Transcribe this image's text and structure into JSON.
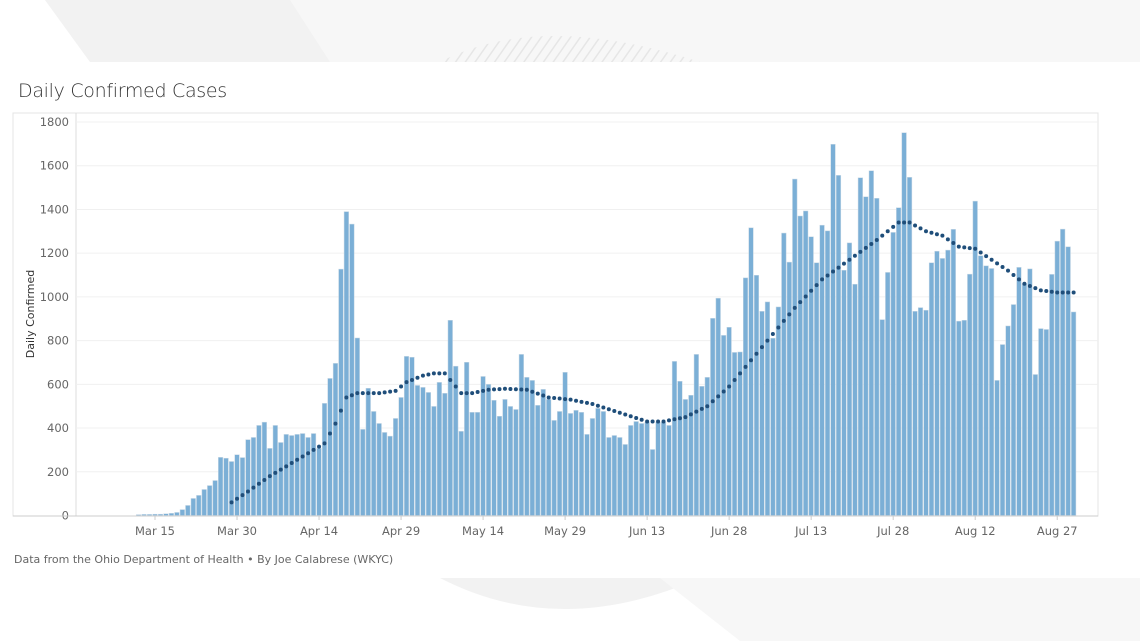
{
  "chart_data": {
    "type": "bar",
    "title": "Daily Confirmed Cases",
    "xlabel": "",
    "ylabel": "Daily Confirmed",
    "ylim": [
      0,
      1800
    ],
    "yticks": [
      0,
      200,
      400,
      600,
      800,
      1000,
      1200,
      1400,
      1600,
      1800
    ],
    "grid": true,
    "start_date": "2020-03-12",
    "xticks": [
      {
        "date": "2020-03-15",
        "label": "Mar 15"
      },
      {
        "date": "2020-03-30",
        "label": "Mar 30"
      },
      {
        "date": "2020-04-14",
        "label": "Apr 14"
      },
      {
        "date": "2020-04-29",
        "label": "Apr 29"
      },
      {
        "date": "2020-05-14",
        "label": "May 14"
      },
      {
        "date": "2020-05-29",
        "label": "May 29"
      },
      {
        "date": "2020-06-13",
        "label": "Jun 13"
      },
      {
        "date": "2020-06-28",
        "label": "Jun 28"
      },
      {
        "date": "2020-07-13",
        "label": "Jul 13"
      },
      {
        "date": "2020-07-28",
        "label": "Jul 28"
      },
      {
        "date": "2020-08-12",
        "label": "Aug 12"
      },
      {
        "date": "2020-08-27",
        "label": "Aug 27"
      }
    ],
    "series": [
      {
        "name": "Daily Confirmed",
        "type": "bar",
        "color": "#7bafd6",
        "values": [
          4,
          5,
          5,
          6,
          6,
          8,
          10,
          14,
          27,
          46,
          78,
          92,
          119,
          137,
          160,
          266,
          262,
          247,
          278,
          265,
          347,
          357,
          412,
          427,
          307,
          412,
          334,
          371,
          366,
          371,
          375,
          357,
          375,
          307,
          513,
          627,
          696,
          1127,
          1390,
          1333,
          812,
          394,
          582,
          476,
          421,
          380,
          363,
          444,
          540,
          728,
          724,
          595,
          586,
          563,
          499,
          609,
          559,
          893,
          683,
          385,
          701,
          472,
          472,
          636,
          600,
          527,
          454,
          531,
          499,
          485,
          737,
          632,
          618,
          504,
          577,
          531,
          435,
          476,
          655,
          467,
          481,
          472,
          371,
          444,
          490,
          476,
          357,
          366,
          357,
          325,
          412,
          430,
          421,
          426,
          302,
          426,
          426,
          412,
          705,
          614,
          531,
          550,
          737,
          591,
          632,
          902,
          994,
          824,
          861,
          746,
          748,
          1087,
          1316,
          1099,
          934,
          977,
          811,
          954,
          1292,
          1159,
          1539,
          1370,
          1393,
          1275,
          1156,
          1328,
          1302,
          1698,
          1556,
          1122,
          1247,
          1058,
          1545,
          1458,
          1577,
          1451,
          896,
          1112,
          1295,
          1408,
          1751,
          1547,
          934,
          951,
          939,
          1156,
          1209,
          1176,
          1214,
          1309,
          889,
          893,
          1104,
          1438,
          1188,
          1142,
          1130,
          618,
          782,
          867,
          965,
          1135,
          1061,
          1128,
          645,
          855,
          851,
          1103,
          1255,
          1310,
          1229,
          931
        ]
      },
      {
        "name": "Trend",
        "type": "dotted-line",
        "color": "#1f4e7a",
        "points": [
          [
            "2020-03-29",
            60
          ],
          [
            "2020-04-01",
            110
          ],
          [
            "2020-04-05",
            180
          ],
          [
            "2020-04-09",
            240
          ],
          [
            "2020-04-13",
            300
          ],
          [
            "2020-04-15",
            330
          ],
          [
            "2020-04-17",
            420
          ],
          [
            "2020-04-19",
            540
          ],
          [
            "2020-04-21",
            560
          ],
          [
            "2020-04-25",
            560
          ],
          [
            "2020-04-28",
            570
          ],
          [
            "2020-04-30",
            610
          ],
          [
            "2020-05-03",
            640
          ],
          [
            "2020-05-05",
            650
          ],
          [
            "2020-05-07",
            650
          ],
          [
            "2020-05-08",
            620
          ],
          [
            "2020-05-10",
            560
          ],
          [
            "2020-05-12",
            560
          ],
          [
            "2020-05-15",
            575
          ],
          [
            "2020-05-18",
            580
          ],
          [
            "2020-05-22",
            575
          ],
          [
            "2020-05-26",
            540
          ],
          [
            "2020-05-30",
            530
          ],
          [
            "2020-06-03",
            510
          ],
          [
            "2020-06-08",
            470
          ],
          [
            "2020-06-13",
            430
          ],
          [
            "2020-06-16",
            430
          ],
          [
            "2020-06-20",
            450
          ],
          [
            "2020-06-24",
            500
          ],
          [
            "2020-06-28",
            590
          ],
          [
            "2020-07-01",
            680
          ],
          [
            "2020-07-05",
            800
          ],
          [
            "2020-07-10",
            950
          ],
          [
            "2020-07-15",
            1080
          ],
          [
            "2020-07-20",
            1170
          ],
          [
            "2020-07-25",
            1260
          ],
          [
            "2020-07-29",
            1340
          ],
          [
            "2020-07-31",
            1340
          ],
          [
            "2020-08-03",
            1300
          ],
          [
            "2020-08-06",
            1280
          ],
          [
            "2020-08-09",
            1230
          ],
          [
            "2020-08-12",
            1220
          ],
          [
            "2020-08-15",
            1170
          ],
          [
            "2020-08-18",
            1120
          ],
          [
            "2020-08-21",
            1060
          ],
          [
            "2020-08-24",
            1030
          ],
          [
            "2020-08-27",
            1020
          ],
          [
            "2020-08-30",
            1020
          ]
        ]
      }
    ]
  },
  "footer": "Data from the Ohio Department of Health • By Joe Calabrese (WKYC)"
}
